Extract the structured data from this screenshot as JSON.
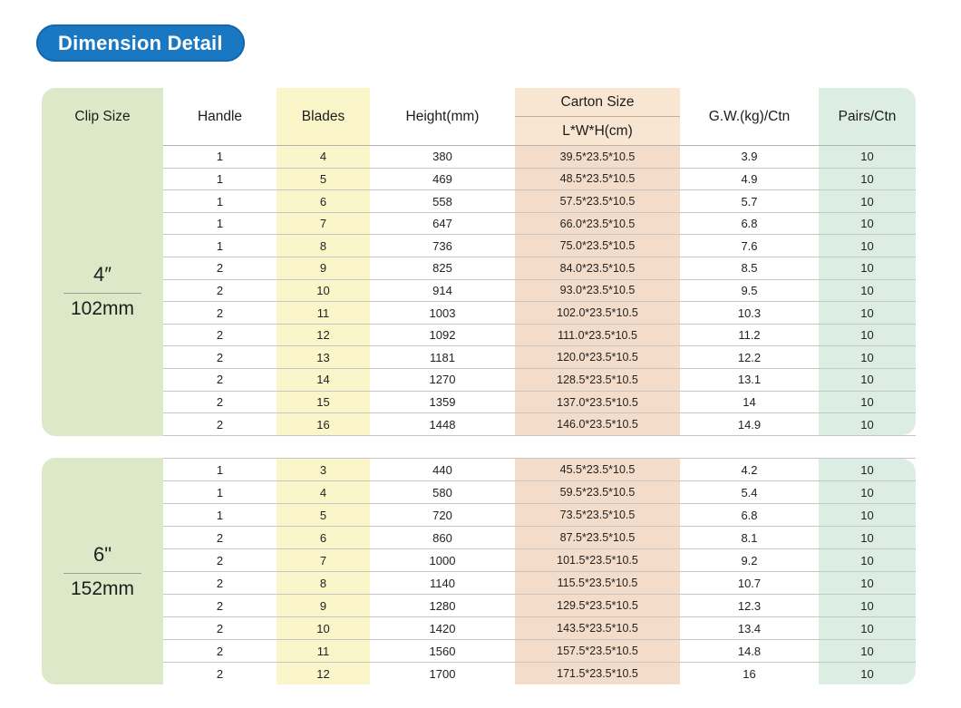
{
  "badge": {
    "label": "Dimension Detail"
  },
  "table": {
    "header": {
      "clip_size": "Clip Size",
      "handle": "Handle",
      "blades": "Blades",
      "height": "Height(mm)",
      "carton_size": "Carton Size",
      "carton_sub": "L*W*H(cm)",
      "gw": "G.W.(kg)/Ctn",
      "pairs": "Pairs/Ctn"
    },
    "sections": [
      {
        "clip_inch": "4″",
        "clip_mm": "102mm",
        "rows": [
          {
            "handle": "1",
            "blades": "4",
            "height": "380",
            "carton": "39.5*23.5*10.5",
            "gw": "3.9",
            "pairs": "10"
          },
          {
            "handle": "1",
            "blades": "5",
            "height": "469",
            "carton": "48.5*23.5*10.5",
            "gw": "4.9",
            "pairs": "10"
          },
          {
            "handle": "1",
            "blades": "6",
            "height": "558",
            "carton": "57.5*23.5*10.5",
            "gw": "5.7",
            "pairs": "10"
          },
          {
            "handle": "1",
            "blades": "7",
            "height": "647",
            "carton": "66.0*23.5*10.5",
            "gw": "6.8",
            "pairs": "10"
          },
          {
            "handle": "1",
            "blades": "8",
            "height": "736",
            "carton": "75.0*23.5*10.5",
            "gw": "7.6",
            "pairs": "10"
          },
          {
            "handle": "2",
            "blades": "9",
            "height": "825",
            "carton": "84.0*23.5*10.5",
            "gw": "8.5",
            "pairs": "10"
          },
          {
            "handle": "2",
            "blades": "10",
            "height": "914",
            "carton": "93.0*23.5*10.5",
            "gw": "9.5",
            "pairs": "10"
          },
          {
            "handle": "2",
            "blades": "11",
            "height": "1003",
            "carton": "102.0*23.5*10.5",
            "gw": "10.3",
            "pairs": "10"
          },
          {
            "handle": "2",
            "blades": "12",
            "height": "1092",
            "carton": "111.0*23.5*10.5",
            "gw": "11.2",
            "pairs": "10"
          },
          {
            "handle": "2",
            "blades": "13",
            "height": "1181",
            "carton": "120.0*23.5*10.5",
            "gw": "12.2",
            "pairs": "10"
          },
          {
            "handle": "2",
            "blades": "14",
            "height": "1270",
            "carton": "128.5*23.5*10.5",
            "gw": "13.1",
            "pairs": "10"
          },
          {
            "handle": "2",
            "blades": "15",
            "height": "1359",
            "carton": "137.0*23.5*10.5",
            "gw": "14",
            "pairs": "10"
          },
          {
            "handle": "2",
            "blades": "16",
            "height": "1448",
            "carton": "146.0*23.5*10.5",
            "gw": "14.9",
            "pairs": "10"
          }
        ]
      },
      {
        "clip_inch": "6\"",
        "clip_mm": "152mm",
        "rows": [
          {
            "handle": "1",
            "blades": "3",
            "height": "440",
            "carton": "45.5*23.5*10.5",
            "gw": "4.2",
            "pairs": "10"
          },
          {
            "handle": "1",
            "blades": "4",
            "height": "580",
            "carton": "59.5*23.5*10.5",
            "gw": "5.4",
            "pairs": "10"
          },
          {
            "handle": "1",
            "blades": "5",
            "height": "720",
            "carton": "73.5*23.5*10.5",
            "gw": "6.8",
            "pairs": "10"
          },
          {
            "handle": "2",
            "blades": "6",
            "height": "860",
            "carton": "87.5*23.5*10.5",
            "gw": "8.1",
            "pairs": "10"
          },
          {
            "handle": "2",
            "blades": "7",
            "height": "1000",
            "carton": "101.5*23.5*10.5",
            "gw": "9.2",
            "pairs": "10"
          },
          {
            "handle": "2",
            "blades": "8",
            "height": "1140",
            "carton": "115.5*23.5*10.5",
            "gw": "10.7",
            "pairs": "10"
          },
          {
            "handle": "2",
            "blades": "9",
            "height": "1280",
            "carton": "129.5*23.5*10.5",
            "gw": "12.3",
            "pairs": "10"
          },
          {
            "handle": "2",
            "blades": "10",
            "height": "1420",
            "carton": "143.5*23.5*10.5",
            "gw": "13.4",
            "pairs": "10"
          },
          {
            "handle": "2",
            "blades": "11",
            "height": "1560",
            "carton": "157.5*23.5*10.5",
            "gw": "14.8",
            "pairs": "10"
          },
          {
            "handle": "2",
            "blades": "12",
            "height": "1700",
            "carton": "171.5*23.5*10.5",
            "gw": "16",
            "pairs": "10"
          }
        ]
      }
    ]
  },
  "colors": {
    "badge_blue": "#1a77c2",
    "clip_green": "#dce9c8",
    "blades_yellow": "#faf6c9",
    "carton_peach_header": "#f8e5d2",
    "carton_peach_row": "#f3dcc9",
    "pairs_mint": "#dceee3",
    "row_line": "#c6c6c6"
  }
}
